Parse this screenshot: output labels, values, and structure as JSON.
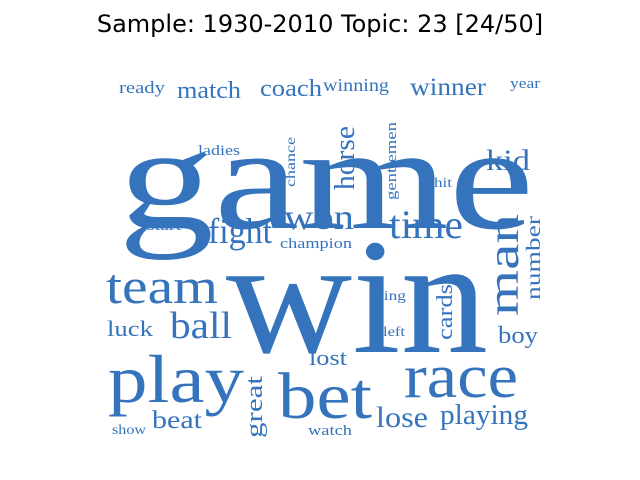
{
  "title": "Sample: 1930-2010 Topic: 23 [24/50]",
  "word_color": "#3574bd",
  "words": [
    {
      "text": "game",
      "weight": 1.0
    },
    {
      "text": "win",
      "weight": 0.98
    },
    {
      "text": "play",
      "weight": 0.55
    },
    {
      "text": "bet",
      "weight": 0.5
    },
    {
      "text": "race",
      "weight": 0.5
    },
    {
      "text": "team",
      "weight": 0.4
    },
    {
      "text": "man",
      "weight": 0.3
    },
    {
      "text": "fight",
      "weight": 0.26
    },
    {
      "text": "time",
      "weight": 0.28
    },
    {
      "text": "won",
      "weight": 0.26
    },
    {
      "text": "ball",
      "weight": 0.26
    },
    {
      "text": "kid",
      "weight": 0.2
    },
    {
      "text": "horse",
      "weight": 0.2
    },
    {
      "text": "lose",
      "weight": 0.2
    },
    {
      "text": "playing",
      "weight": 0.2
    },
    {
      "text": "match",
      "weight": 0.18
    },
    {
      "text": "coach",
      "weight": 0.18
    },
    {
      "text": "winner",
      "weight": 0.18
    },
    {
      "text": "beat",
      "weight": 0.17
    },
    {
      "text": "luck",
      "weight": 0.16
    },
    {
      "text": "boy",
      "weight": 0.16
    },
    {
      "text": "great",
      "weight": 0.16
    },
    {
      "text": "cards",
      "weight": 0.16
    },
    {
      "text": "number",
      "weight": 0.16
    },
    {
      "text": "lost",
      "weight": 0.15
    },
    {
      "text": "winning",
      "weight": 0.13
    },
    {
      "text": "ready",
      "weight": 0.12
    },
    {
      "text": "year",
      "weight": 0.1
    },
    {
      "text": "gentlemen",
      "weight": 0.1
    },
    {
      "text": "chance",
      "weight": 0.1
    },
    {
      "text": "champion",
      "weight": 0.1
    },
    {
      "text": "watch",
      "weight": 0.1
    },
    {
      "text": "ladies",
      "weight": 0.09
    },
    {
      "text": "start",
      "weight": 0.09
    },
    {
      "text": "hit",
      "weight": 0.09
    },
    {
      "text": "ring",
      "weight": 0.09
    },
    {
      "text": "left",
      "weight": 0.09
    },
    {
      "text": "show",
      "weight": 0.09
    }
  ]
}
